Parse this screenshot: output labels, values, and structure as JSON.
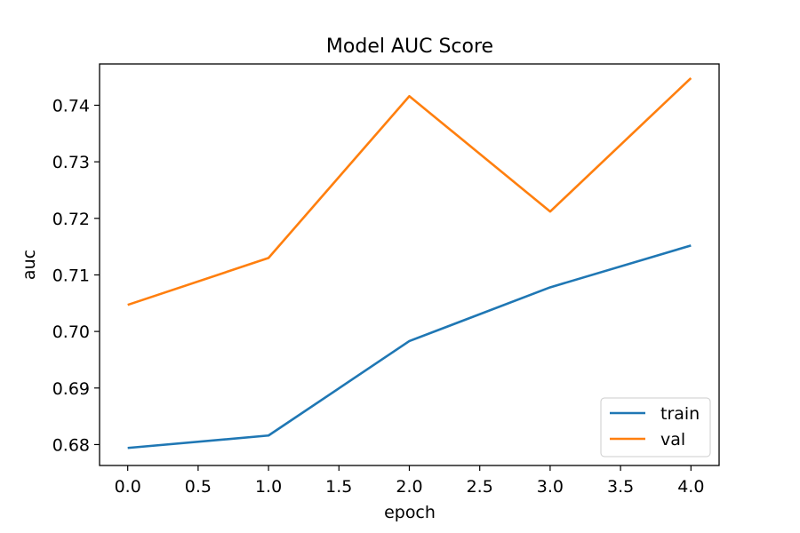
{
  "chart_data": {
    "type": "line",
    "title": "Model AUC Score",
    "xlabel": "epoch",
    "ylabel": "auc",
    "x": [
      0,
      1,
      2,
      3,
      4
    ],
    "xlim": [
      -0.2,
      4.2
    ],
    "ylim": [
      0.6763,
      0.7473
    ],
    "xticks": [
      0.0,
      0.5,
      1.0,
      1.5,
      2.0,
      2.5,
      3.0,
      3.5,
      4.0
    ],
    "xtick_labels": [
      "0.0",
      "0.5",
      "1.0",
      "1.5",
      "2.0",
      "2.5",
      "3.0",
      "3.5",
      "4.0"
    ],
    "yticks": [
      0.68,
      0.69,
      0.7,
      0.71,
      0.72,
      0.73,
      0.74
    ],
    "ytick_labels": [
      "0.68",
      "0.69",
      "0.70",
      "0.71",
      "0.72",
      "0.73",
      "0.74"
    ],
    "grid": false,
    "legend_position": "lower right",
    "series": [
      {
        "name": "train",
        "color": "#1f77b4",
        "values": [
          0.6794,
          0.6816,
          0.6983,
          0.7078,
          0.7152
        ]
      },
      {
        "name": "val",
        "color": "#ff7f0e",
        "values": [
          0.7047,
          0.713,
          0.7416,
          0.7212,
          0.7448
        ]
      }
    ]
  }
}
